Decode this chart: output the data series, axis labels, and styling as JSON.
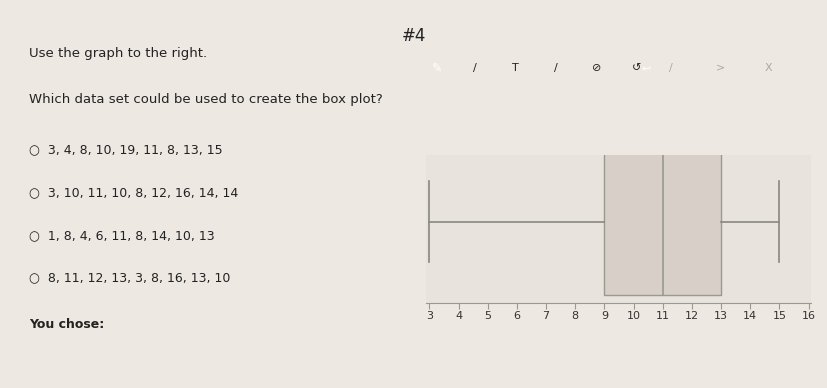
{
  "title": "#4",
  "question_text": "Use the graph to the right.",
  "sub_question": "Which data set could be used to create the box plot?",
  "options": [
    "3, 4, 8, 10, 19, 11, 8, 13, 15",
    "3, 10, 11, 10, 8, 12, 16, 14, 14",
    "1, 8, 4, 6, 11, 8, 14, 10, 13",
    "8, 11, 12, 13, 3, 8, 16, 13, 10"
  ],
  "you_chose_label": "You chose:",
  "boxplot_data": {
    "whisker_min": 3,
    "q1": 9,
    "median": 11,
    "q3": 13,
    "whisker_max": 15
  },
  "axis_min": 3,
  "axis_max": 16,
  "axis_ticks": [
    3,
    4,
    5,
    6,
    7,
    8,
    9,
    10,
    11,
    12,
    13,
    14,
    15,
    16
  ],
  "bg_left": "#ede8e2",
  "bg_right": "#e8e3dd",
  "box_facecolor": "#d8d0c8",
  "box_edgecolor": "#999990",
  "whisker_color": "#888880",
  "axis_line_color": "#999990",
  "tick_label_color": "#333333",
  "text_color": "#222222",
  "toolbar_bg": "#c8c4be",
  "toolbar_active_bg": "#555555",
  "title_fontsize": 12,
  "question_fontsize": 9.5,
  "option_fontsize": 9,
  "you_chose_fontsize": 9,
  "tick_fontsize": 8
}
